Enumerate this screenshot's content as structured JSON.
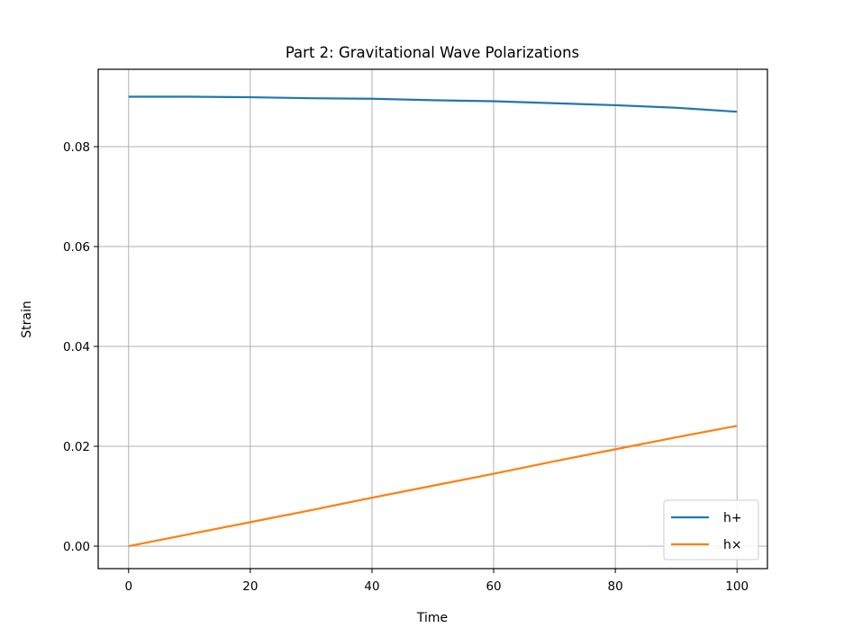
{
  "chart_data": {
    "type": "line",
    "title": "Part 2: Gravitational Wave Polarizations",
    "xlabel": "Time",
    "ylabel": "Strain",
    "xlim": [
      -5,
      105
    ],
    "ylim": [
      -0.0045,
      0.0955
    ],
    "xticks": [
      0,
      20,
      40,
      60,
      80,
      100
    ],
    "xtick_labels": [
      "0",
      "20",
      "40",
      "60",
      "80",
      "100"
    ],
    "yticks": [
      0.0,
      0.02,
      0.04,
      0.06,
      0.08
    ],
    "ytick_labels": [
      "0.00",
      "0.02",
      "0.04",
      "0.06",
      "0.08"
    ],
    "grid": true,
    "legend_position": "lower right",
    "x": [
      0,
      10,
      20,
      30,
      40,
      50,
      60,
      70,
      80,
      90,
      100
    ],
    "series": [
      {
        "name": "h+",
        "color": "#1f77b4",
        "values": [
          0.09,
          0.09,
          0.0899,
          0.0897,
          0.0896,
          0.0893,
          0.0891,
          0.0887,
          0.0883,
          0.0878,
          0.087
        ]
      },
      {
        "name": "h×",
        "color": "#ff7f0e",
        "values": [
          0.0,
          0.0024,
          0.0048,
          0.0072,
          0.0097,
          0.0121,
          0.0145,
          0.017,
          0.0194,
          0.0218,
          0.0241
        ]
      }
    ]
  }
}
